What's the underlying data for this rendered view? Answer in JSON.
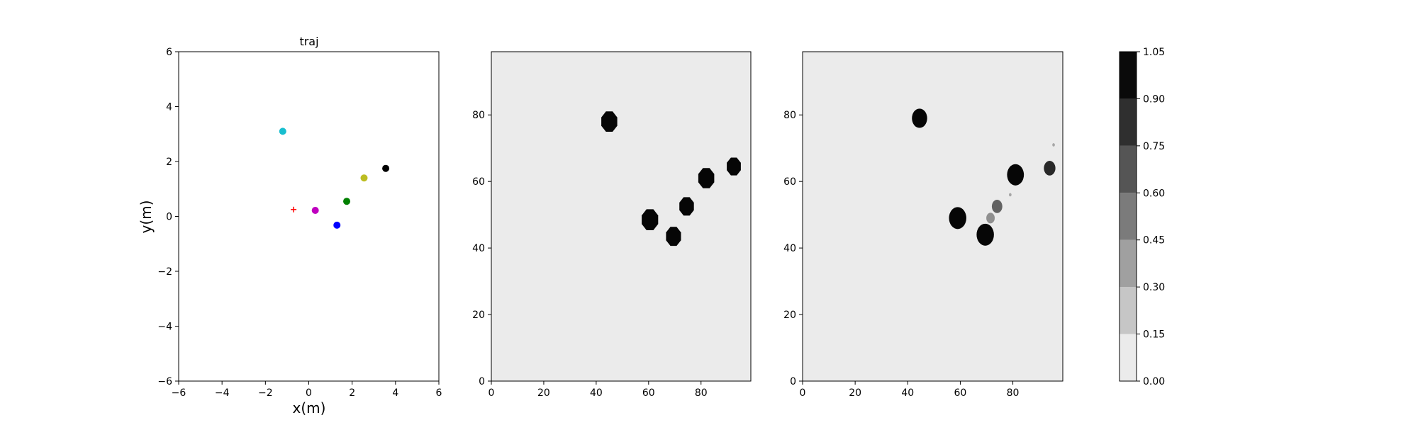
{
  "chart_data": [
    {
      "type": "scatter",
      "title": "traj",
      "xlabel": "x(m)",
      "ylabel": "y(m)",
      "xlim": [
        -6,
        6
      ],
      "ylim": [
        -6,
        6
      ],
      "xticks": [
        -6,
        -4,
        -2,
        0,
        2,
        4,
        6
      ],
      "yticks": [
        -6,
        -4,
        -2,
        0,
        2,
        4,
        6
      ],
      "grid": false,
      "points": [
        {
          "x": -1.2,
          "y": 3.1,
          "color": "#17becf",
          "marker": "circle"
        },
        {
          "x": 3.55,
          "y": 1.75,
          "color": "#000000",
          "marker": "circle"
        },
        {
          "x": 2.55,
          "y": 1.4,
          "color": "#bcbd22",
          "marker": "circle"
        },
        {
          "x": 1.75,
          "y": 0.55,
          "color": "#008000",
          "marker": "circle"
        },
        {
          "x": 0.3,
          "y": 0.22,
          "color": "#bf00bf",
          "marker": "circle"
        },
        {
          "x": 1.3,
          "y": -0.32,
          "color": "#0000ff",
          "marker": "circle"
        },
        {
          "x": -0.7,
          "y": 0.25,
          "color": "#ff0000",
          "marker": "plus"
        }
      ]
    },
    {
      "type": "heatmap",
      "title": "",
      "xlim": [
        0,
        99
      ],
      "ylim": [
        0,
        99
      ],
      "xticks": [
        0,
        20,
        40,
        60,
        80
      ],
      "yticks": [
        0,
        20,
        40,
        60,
        80
      ],
      "background_value": 0.0,
      "blobs": [
        {
          "x": 45,
          "y": 78,
          "r": 3.3,
          "value": 1.0,
          "sides": 8
        },
        {
          "x": 60.5,
          "y": 48.5,
          "r": 3.4,
          "value": 1.0,
          "sides": 8
        },
        {
          "x": 69.5,
          "y": 43.5,
          "r": 3.1,
          "value": 1.0,
          "sides": 8
        },
        {
          "x": 74.5,
          "y": 52.5,
          "r": 3.0,
          "value": 1.0,
          "sides": 8
        },
        {
          "x": 82,
          "y": 61,
          "r": 3.3,
          "value": 1.0,
          "sides": 8
        },
        {
          "x": 92.5,
          "y": 64.5,
          "r": 2.9,
          "value": 1.0,
          "sides": 8
        }
      ]
    },
    {
      "type": "heatmap",
      "title": "",
      "xlim": [
        0,
        99
      ],
      "ylim": [
        0,
        99
      ],
      "xticks": [
        0,
        20,
        40,
        60,
        80
      ],
      "yticks": [
        0,
        20,
        40,
        60,
        80
      ],
      "background_value": 0.0,
      "blobs": [
        {
          "x": 44.5,
          "y": 79,
          "r": 2.9,
          "value": 1.0
        },
        {
          "x": 59,
          "y": 49,
          "r": 3.3,
          "value": 1.0
        },
        {
          "x": 69.5,
          "y": 44,
          "r": 3.3,
          "value": 1.0
        },
        {
          "x": 81,
          "y": 62,
          "r": 3.2,
          "value": 1.0
        },
        {
          "x": 94,
          "y": 64,
          "r": 2.2,
          "value": 0.85
        },
        {
          "x": 74,
          "y": 52.5,
          "r": 2.0,
          "value": 0.6
        },
        {
          "x": 71.5,
          "y": 49,
          "r": 1.6,
          "value": 0.4
        },
        {
          "x": 79,
          "y": 56,
          "r": 0.5,
          "value": 0.3
        },
        {
          "x": 95.5,
          "y": 71,
          "r": 0.5,
          "value": 0.3
        }
      ]
    },
    {
      "type": "colorbar",
      "levels": [
        0.0,
        0.15,
        0.3,
        0.45,
        0.6,
        0.75,
        0.9,
        1.05
      ],
      "tick_labels": [
        "0.00",
        "0.15",
        "0.30",
        "0.45",
        "0.60",
        "0.75",
        "0.90",
        "1.05"
      ],
      "colors": [
        "#ebebeb",
        "#c6c6c6",
        "#a0a0a0",
        "#7b7b7b",
        "#555555",
        "#2f2f2f",
        "#0a0a0a"
      ]
    }
  ]
}
